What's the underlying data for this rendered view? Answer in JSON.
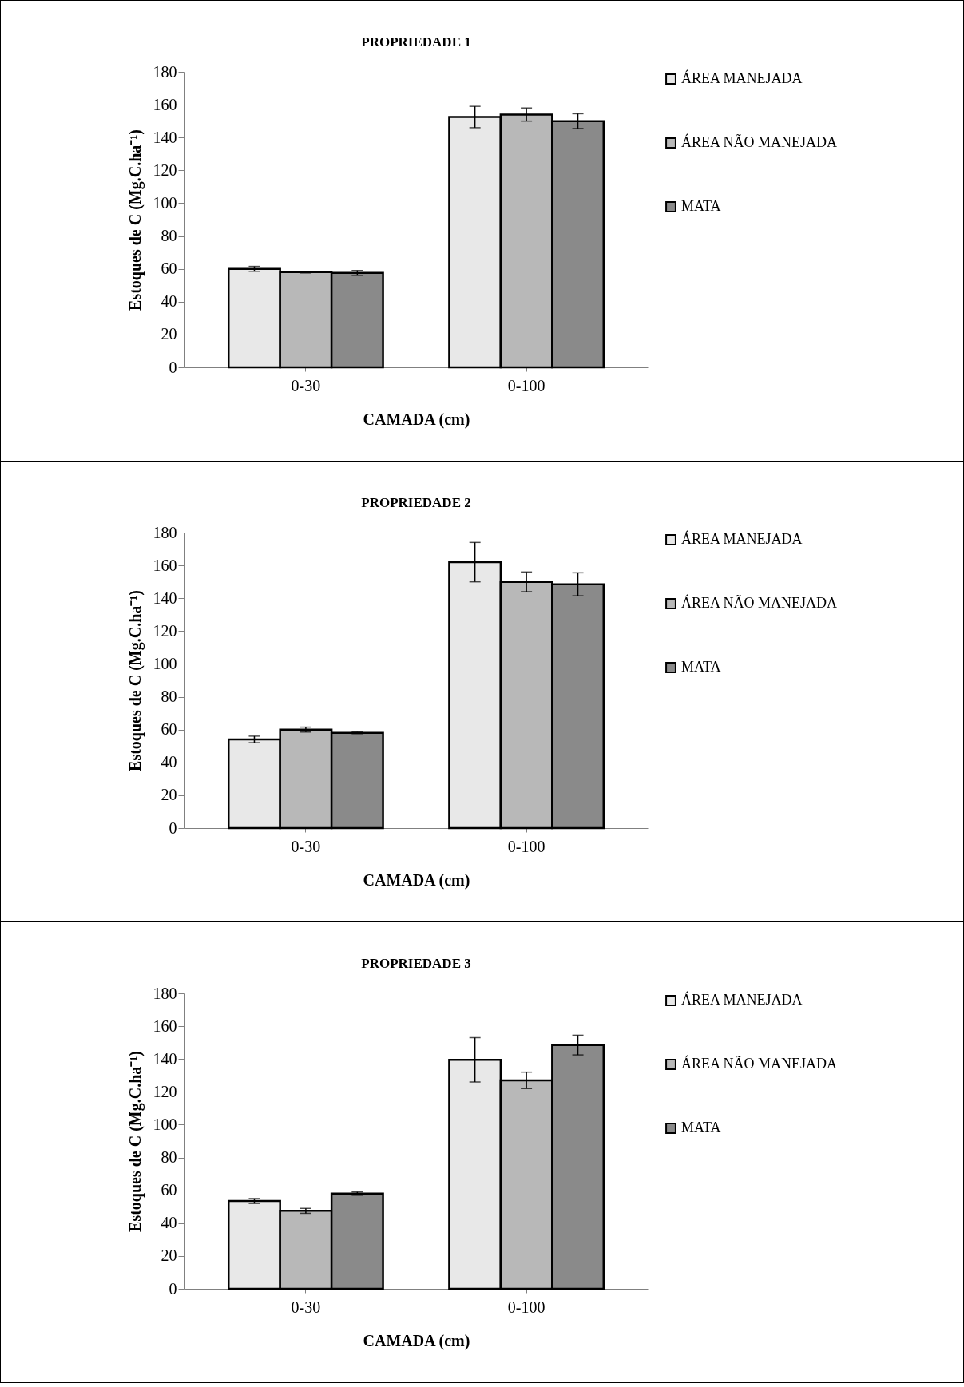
{
  "chart_data": [
    {
      "type": "bar",
      "title": "PROPRIEDADE 1",
      "xlabel": "CAMADA (cm)",
      "ylabel": "Estoques de C (Mg.C.ha⁻¹)",
      "categories": [
        "0-30",
        "0-100"
      ],
      "ylim": [
        0,
        180
      ],
      "yticks": [
        0,
        20,
        40,
        60,
        80,
        100,
        120,
        140,
        160,
        180
      ],
      "legend": "right",
      "series": [
        {
          "name": "ÁREA MANEJADA",
          "color": "#e8e8e8",
          "values": [
            60,
            152.5
          ],
          "errors": [
            1.5,
            6.5
          ]
        },
        {
          "name": "ÁREA NÃO MANEJADA",
          "color": "#b8b8b8",
          "values": [
            58,
            154
          ],
          "errors": [
            0.5,
            4
          ]
        },
        {
          "name": "MATA",
          "color": "#8a8a8a",
          "values": [
            57.5,
            150
          ],
          "errors": [
            1.5,
            4.5
          ]
        }
      ]
    },
    {
      "type": "bar",
      "title": "PROPRIEDADE 2",
      "xlabel": "CAMADA (cm)",
      "ylabel": "Estoques de C (Mg.C.ha⁻¹)",
      "categories": [
        "0-30",
        "0-100"
      ],
      "ylim": [
        0,
        180
      ],
      "yticks": [
        0,
        20,
        40,
        60,
        80,
        100,
        120,
        140,
        160,
        180
      ],
      "legend": "right",
      "series": [
        {
          "name": "ÁREA MANEJADA",
          "color": "#e8e8e8",
          "values": [
            54,
            162
          ],
          "errors": [
            2,
            12
          ]
        },
        {
          "name": "ÁREA NÃO MANEJADA",
          "color": "#b8b8b8",
          "values": [
            60,
            150
          ],
          "errors": [
            1.5,
            6
          ]
        },
        {
          "name": "MATA",
          "color": "#8a8a8a",
          "values": [
            58,
            148.5
          ],
          "errors": [
            0.5,
            7
          ]
        }
      ]
    },
    {
      "type": "bar",
      "title": "PROPRIEDADE 3",
      "xlabel": "CAMADA (cm)",
      "ylabel": "Estoques de C (Mg.C.ha⁻¹)",
      "categories": [
        "0-30",
        "0-100"
      ],
      "ylim": [
        0,
        180
      ],
      "yticks": [
        0,
        20,
        40,
        60,
        80,
        100,
        120,
        140,
        160,
        180
      ],
      "legend": "right",
      "series": [
        {
          "name": "ÁREA MANEJADA",
          "color": "#e8e8e8",
          "values": [
            53.5,
            139.5
          ],
          "errors": [
            1.5,
            13.5
          ]
        },
        {
          "name": "ÁREA NÃO MANEJADA",
          "color": "#b8b8b8",
          "values": [
            47.5,
            127
          ],
          "errors": [
            1.5,
            5
          ]
        },
        {
          "name": "MATA",
          "color": "#8a8a8a",
          "values": [
            58,
            148.5
          ],
          "errors": [
            1,
            6
          ]
        }
      ]
    }
  ]
}
